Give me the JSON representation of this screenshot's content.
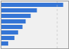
{
  "chart_data": {
    "type": "bar",
    "orientation": "horizontal",
    "categories": [
      null,
      null,
      null,
      null,
      null,
      null,
      null,
      null
    ],
    "values": [
      573,
      332,
      275,
      229,
      200,
      160,
      126,
      69
    ],
    "color": "#3575D5",
    "xlim": [
      0,
      620
    ],
    "xticks": [
      515
    ],
    "grid": true,
    "tick_labels": false
  }
}
